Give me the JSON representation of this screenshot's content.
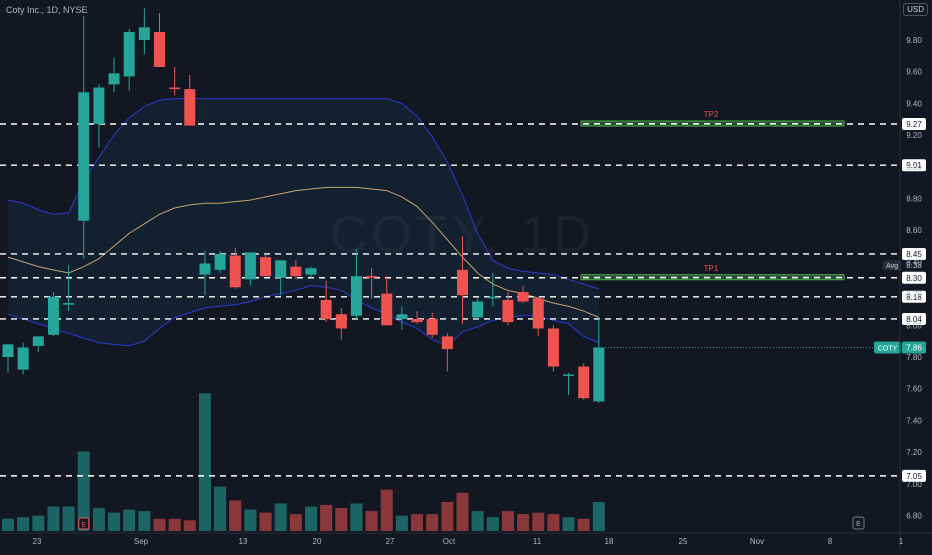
{
  "title": "Coty Inc., 1D, NYSE",
  "currency": "USD",
  "watermark": "COTY, 1D",
  "colors": {
    "background": "#131722",
    "up": "#26a69a",
    "down": "#ef5350",
    "band": "#2a3ad0",
    "mid": "#c9a36b",
    "level": "#ffffff",
    "tp": "#4caf50",
    "axis_text": "#b2b5be"
  },
  "chart_data": {
    "type": "candlestick",
    "title": "Coty Inc., 1D, NYSE",
    "x_ticks": [
      "23",
      "Sep",
      "13",
      "20",
      "27",
      "Oct",
      "11",
      "18",
      "25",
      "Nov",
      "8",
      "1"
    ],
    "y_ticks": [
      "9.80",
      "9.60",
      "9.40",
      "9.20",
      "9.00",
      "8.80",
      "8.60",
      "8.40",
      "8.20",
      "8.00",
      "7.80",
      "7.60",
      "7.40",
      "7.20",
      "7.00",
      "6.80"
    ],
    "ylim": [
      6.72,
      9.98
    ],
    "candles": [
      {
        "o": 7.8,
        "h": 7.88,
        "l": 7.7,
        "c": 7.88
      },
      {
        "o": 7.72,
        "h": 7.89,
        "l": 7.69,
        "c": 7.86
      },
      {
        "o": 7.87,
        "h": 7.93,
        "l": 7.83,
        "c": 7.93
      },
      {
        "o": 7.94,
        "h": 8.21,
        "l": 7.93,
        "c": 8.18
      },
      {
        "o": 8.13,
        "h": 8.38,
        "l": 8.09,
        "c": 8.14
      },
      {
        "o": 8.66,
        "h": 9.95,
        "l": 8.42,
        "c": 9.47
      },
      {
        "o": 9.27,
        "h": 9.52,
        "l": 9.12,
        "c": 9.5
      },
      {
        "o": 9.52,
        "h": 9.69,
        "l": 9.47,
        "c": 9.59
      },
      {
        "o": 9.57,
        "h": 9.87,
        "l": 9.48,
        "c": 9.85
      },
      {
        "o": 9.8,
        "h": 10.0,
        "l": 9.71,
        "c": 9.88
      },
      {
        "o": 9.85,
        "h": 9.97,
        "l": 9.63,
        "c": 9.63
      },
      {
        "o": 9.5,
        "h": 9.63,
        "l": 9.45,
        "c": 9.49
      },
      {
        "o": 9.49,
        "h": 9.58,
        "l": 9.26,
        "c": 9.26
      },
      {
        "o": 8.32,
        "h": 8.47,
        "l": 8.19,
        "c": 8.39
      },
      {
        "o": 8.35,
        "h": 8.47,
        "l": 8.33,
        "c": 8.45
      },
      {
        "o": 8.44,
        "h": 8.49,
        "l": 8.23,
        "c": 8.24
      },
      {
        "o": 8.29,
        "h": 8.46,
        "l": 8.25,
        "c": 8.46
      },
      {
        "o": 8.43,
        "h": 8.45,
        "l": 8.31,
        "c": 8.31
      },
      {
        "o": 8.3,
        "h": 8.41,
        "l": 8.19,
        "c": 8.41
      },
      {
        "o": 8.37,
        "h": 8.41,
        "l": 8.29,
        "c": 8.31
      },
      {
        "o": 8.32,
        "h": 8.37,
        "l": 8.3,
        "c": 8.36
      },
      {
        "o": 8.16,
        "h": 8.28,
        "l": 8.02,
        "c": 8.04
      },
      {
        "o": 8.07,
        "h": 8.11,
        "l": 7.91,
        "c": 7.98
      },
      {
        "o": 8.06,
        "h": 8.48,
        "l": 8.04,
        "c": 8.31
      },
      {
        "o": 8.31,
        "h": 8.36,
        "l": 8.17,
        "c": 8.3
      },
      {
        "o": 8.2,
        "h": 8.31,
        "l": 8.0,
        "c": 8.0
      },
      {
        "o": 8.04,
        "h": 8.12,
        "l": 7.97,
        "c": 8.07
      },
      {
        "o": 8.04,
        "h": 8.09,
        "l": 8.01,
        "c": 8.02
      },
      {
        "o": 8.04,
        "h": 8.08,
        "l": 7.92,
        "c": 7.94
      },
      {
        "o": 7.93,
        "h": 7.95,
        "l": 7.71,
        "c": 7.85
      },
      {
        "o": 8.35,
        "h": 8.56,
        "l": 8.01,
        "c": 8.19
      },
      {
        "o": 8.05,
        "h": 8.17,
        "l": 8.04,
        "c": 8.15
      },
      {
        "o": 8.17,
        "h": 8.33,
        "l": 8.12,
        "c": 8.18
      },
      {
        "o": 8.16,
        "h": 8.21,
        "l": 8.0,
        "c": 8.02
      },
      {
        "o": 8.21,
        "h": 8.25,
        "l": 8.14,
        "c": 8.15
      },
      {
        "o": 8.17,
        "h": 8.18,
        "l": 7.93,
        "c": 7.98
      },
      {
        "o": 7.98,
        "h": 8.0,
        "l": 7.71,
        "c": 7.74
      },
      {
        "o": 7.69,
        "h": 7.7,
        "l": 7.56,
        "c": 7.69
      },
      {
        "o": 7.74,
        "h": 7.76,
        "l": 7.53,
        "c": 7.54
      },
      {
        "o": 7.52,
        "h": 8.05,
        "l": 7.51,
        "c": 7.86
      }
    ],
    "volume": [
      8,
      9,
      10,
      16,
      16,
      52,
      15,
      12,
      14,
      13,
      8,
      8,
      7,
      90,
      29,
      20,
      14,
      12,
      18,
      11,
      16,
      17,
      15,
      18,
      13,
      27,
      10,
      11,
      11,
      19,
      25,
      13,
      9,
      13,
      11,
      12,
      11,
      9,
      8,
      19
    ],
    "bb_upper": [
      8.79,
      8.77,
      8.73,
      8.7,
      8.71,
      8.91,
      9.06,
      9.2,
      9.31,
      9.38,
      9.42,
      9.43,
      9.43,
      9.43,
      9.43,
      9.43,
      9.43,
      9.43,
      9.43,
      9.43,
      9.43,
      9.43,
      9.43,
      9.43,
      9.43,
      9.43,
      9.4,
      9.32,
      9.19,
      9.03,
      8.82,
      8.58,
      8.41,
      8.36,
      8.34,
      8.33,
      8.32,
      8.29,
      8.26,
      8.23
    ],
    "bb_mid": [
      8.43,
      8.4,
      8.37,
      8.35,
      8.33,
      8.37,
      8.42,
      8.5,
      8.58,
      8.64,
      8.7,
      8.74,
      8.76,
      8.77,
      8.77,
      8.78,
      8.79,
      8.81,
      8.83,
      8.85,
      8.86,
      8.87,
      8.87,
      8.87,
      8.86,
      8.85,
      8.81,
      8.75,
      8.65,
      8.54,
      8.43,
      8.33,
      8.26,
      8.22,
      8.2,
      8.17,
      8.14,
      8.12,
      8.09,
      8.05
    ],
    "bb_lower": [
      8.07,
      8.04,
      8.01,
      7.98,
      7.95,
      7.92,
      7.89,
      7.88,
      7.87,
      7.9,
      7.98,
      8.05,
      8.08,
      8.11,
      8.12,
      8.13,
      8.15,
      8.18,
      8.2,
      8.22,
      8.25,
      8.24,
      8.22,
      8.16,
      8.11,
      8.07,
      8.02,
      7.98,
      7.91,
      7.87,
      7.96,
      7.99,
      8.03,
      8.05,
      8.06,
      8.06,
      8.03,
      8.01,
      7.93,
      7.89
    ],
    "levels": [
      {
        "value": 9.27,
        "label": "9.27"
      },
      {
        "value": 9.01,
        "label": "9.01"
      },
      {
        "value": 8.45,
        "label": "8.45"
      },
      {
        "value": 8.3,
        "label": "8.30"
      },
      {
        "value": 8.18,
        "label": "8.18"
      },
      {
        "value": 8.04,
        "label": "8.04"
      },
      {
        "value": 7.05,
        "label": "7.05"
      }
    ],
    "avg": {
      "value": 8.38,
      "label": "8.38",
      "tag": "Avg"
    },
    "last_price": {
      "value": 7.86,
      "label": "7.86",
      "tag": "COTY"
    },
    "targets": [
      {
        "name": "TP2",
        "value": 9.27
      },
      {
        "name": "TP1",
        "value": 8.3
      }
    ],
    "earnings_marker": "E"
  }
}
